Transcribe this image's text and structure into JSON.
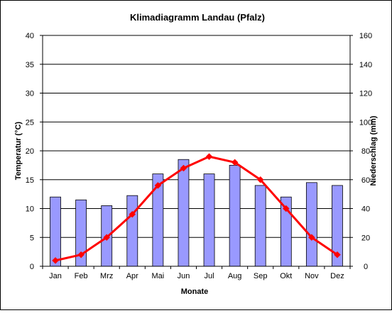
{
  "chart_data": {
    "type": "bar+line",
    "title": "Klimadiagramm Landau (Pfalz)",
    "xlabel": "Monate",
    "ylabel_left": "Temperatur (°C)",
    "ylabel_right": "Niederschlag (mm)",
    "categories": [
      "Jan",
      "Feb",
      "Mrz",
      "Apr",
      "Mai",
      "Jun",
      "Jul",
      "Aug",
      "Sep",
      "Okt",
      "Nov",
      "Dez"
    ],
    "ylim_left": [
      0,
      40
    ],
    "ylim_right": [
      0,
      160
    ],
    "yticks_left": [
      0,
      5,
      10,
      15,
      20,
      25,
      30,
      35,
      40
    ],
    "yticks_right": [
      0,
      20,
      40,
      60,
      80,
      100,
      120,
      140,
      160
    ],
    "grid": true,
    "series": [
      {
        "type": "bar",
        "axis": "right",
        "color": "#9999ff",
        "values": [
          48,
          46,
          42,
          49,
          64,
          74,
          64,
          70,
          56,
          48,
          58,
          56
        ]
      },
      {
        "type": "line",
        "axis": "left",
        "color": "#ff0000",
        "marker": "diamond",
        "values": [
          1.0,
          2.0,
          5.0,
          9.0,
          14.0,
          17.0,
          19.0,
          18.0,
          15.0,
          10.0,
          5.0,
          2.0
        ]
      }
    ]
  }
}
